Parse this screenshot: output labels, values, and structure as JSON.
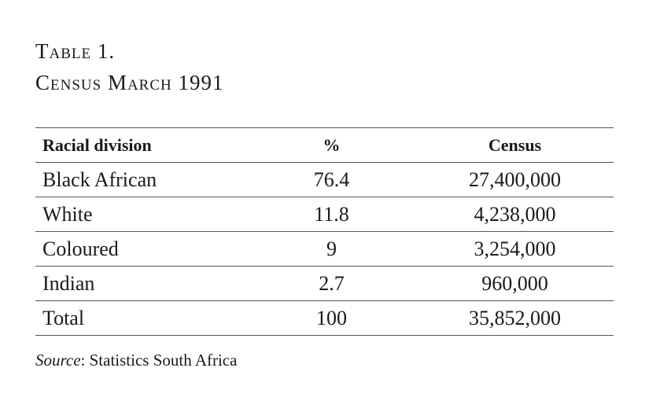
{
  "header": {
    "title": "Table 1.",
    "subtitle": "Census March 1991"
  },
  "table": {
    "columns": [
      "Racial division",
      "%",
      "Census"
    ],
    "rows": [
      [
        "Black African",
        "76.4",
        "27,400,000"
      ],
      [
        "White",
        "11.8",
        "4,238,000"
      ],
      [
        "Coloured",
        "9",
        "3,254,000"
      ],
      [
        "Indian",
        "2.7",
        "960,000"
      ],
      [
        "Total",
        "100",
        "35,852,000"
      ]
    ]
  },
  "source": {
    "label": "Source",
    "text": ": Statistics South Africa"
  }
}
